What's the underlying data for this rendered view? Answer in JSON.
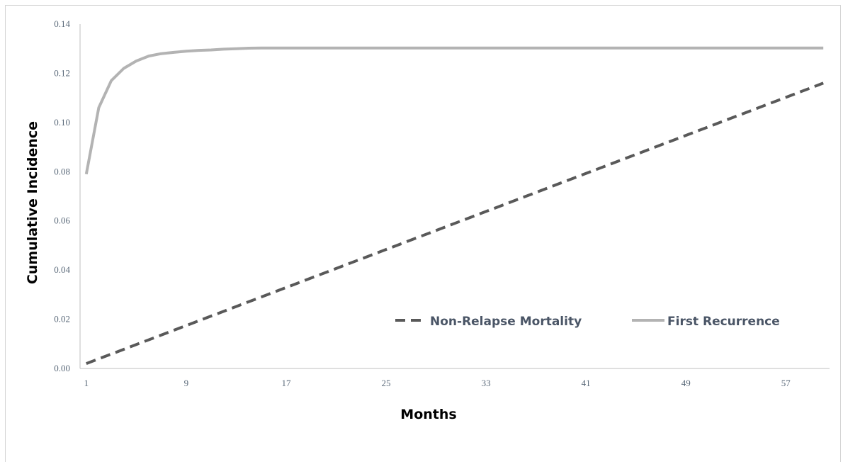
{
  "chart_data": {
    "type": "line",
    "title": "",
    "xlabel": "Months",
    "ylabel": "Cumulative Incidence",
    "xlim": [
      1,
      60
    ],
    "ylim": [
      0,
      0.14
    ],
    "x_ticks": [
      "1",
      "9",
      "17",
      "25",
      "33",
      "41",
      "49",
      "57"
    ],
    "y_ticks": [
      "0.00",
      "0.02",
      "0.04",
      "0.06",
      "0.08",
      "0.10",
      "0.12",
      "0.14"
    ],
    "grid": false,
    "legend": "inside-lower-right",
    "series": [
      {
        "name": "Non-Relapse Mortality",
        "style": "dashed",
        "color": "#595959",
        "x": [
          1,
          60
        ],
        "y": [
          0.002,
          0.116
        ]
      },
      {
        "name": "First Recurrence",
        "style": "solid",
        "color": "#b3b3b3",
        "x": [
          1,
          2,
          3,
          4,
          5,
          6,
          7,
          8,
          9,
          10,
          11,
          12,
          13,
          14,
          15,
          20,
          30,
          40,
          50,
          60
        ],
        "y": [
          0.079,
          0.106,
          0.117,
          0.122,
          0.125,
          0.127,
          0.128,
          0.1285,
          0.129,
          0.1293,
          0.1295,
          0.1298,
          0.13,
          0.1302,
          0.1303,
          0.1303,
          0.1303,
          0.1303,
          0.1303,
          0.1303
        ]
      }
    ]
  }
}
